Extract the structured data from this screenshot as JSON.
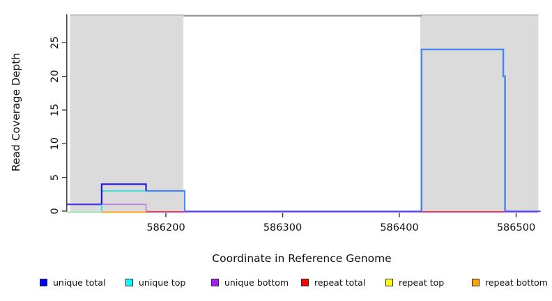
{
  "figure": {
    "background": "#FFFFFF",
    "plot_bg": "#FFFFFF",
    "axis_color": "#3C3C3C",
    "text_color": "#111111"
  },
  "chart_data": {
    "type": "line",
    "subtype": "step-coverage-plot",
    "title": "",
    "xlabel": "Coordinate in Reference Genome",
    "ylabel": "Read Coverage Depth",
    "x_range": [
      586115,
      586521
    ],
    "y_range": [
      0,
      29.5
    ],
    "x_ticks": [
      586200,
      586300,
      586400,
      586500
    ],
    "y_ticks": [
      0,
      5,
      10,
      15,
      20,
      25
    ],
    "grid": false,
    "legend_position": "bottom",
    "shaded_regions": [
      {
        "name": "shaded-region-left",
        "start": 586118,
        "end": 586215,
        "fill": "#DBDBDB",
        "border_top": "#ACACAC"
      },
      {
        "name": "shaded-region-right",
        "start": 586418,
        "end": 586519,
        "fill": "#DBDBDB",
        "border_top": "#ACACAC"
      }
    ],
    "marker_line": {
      "name": "repeat-region-marker",
      "start": 586215,
      "end": 586419,
      "depth": 29,
      "color": "#8C8C8C",
      "width": 2.2
    },
    "series": [
      {
        "name": "unique total",
        "color": "#0000FF",
        "steps": [
          [
            586115,
            586145,
            1
          ],
          [
            586145,
            586182,
            4
          ],
          [
            586182,
            586216,
            3
          ],
          [
            586216,
            586419,
            0
          ],
          [
            586419,
            586489,
            24
          ],
          [
            586489,
            586490,
            20
          ],
          [
            586490,
            586521,
            0
          ]
        ]
      },
      {
        "name": "unique top",
        "color": "#00FFFF",
        "steps": [
          [
            586115,
            586145,
            0
          ],
          [
            586145,
            586216,
            3
          ],
          [
            586216,
            586419,
            0
          ],
          [
            586419,
            586489,
            24
          ],
          [
            586489,
            586490,
            20
          ],
          [
            586490,
            586521,
            0
          ]
        ]
      },
      {
        "name": "unique bottom",
        "color": "#A020F0",
        "steps": [
          [
            586115,
            586182,
            1
          ],
          [
            586182,
            586521,
            0
          ]
        ]
      },
      {
        "name": "repeat total",
        "color": "#FF0000",
        "steps": [
          [
            586115,
            586521,
            0
          ]
        ]
      },
      {
        "name": "repeat top",
        "color": "#FFFF00",
        "steps": [
          [
            586115,
            586521,
            0
          ]
        ]
      },
      {
        "name": "repeat bottom",
        "color": "#FFA500",
        "steps": [
          [
            586115,
            586521,
            0
          ]
        ]
      }
    ],
    "visible_segments": [
      {
        "name": "zero-line-underlay-plum",
        "color": "#C9A4E8",
        "width": 1.5,
        "dy": 2,
        "pts": [
          [
            586182,
            0
          ],
          [
            586519,
            0
          ]
        ]
      },
      {
        "name": "zero-line-green-blend",
        "color": "#8FE3A6",
        "width": 1.8,
        "dy": 1.5,
        "pts": [
          [
            586115,
            0
          ],
          [
            586145,
            0
          ]
        ]
      },
      {
        "name": "zero-line-repeat-bottom",
        "color": "#FFA314",
        "width": 2.0,
        "dy": 1.5,
        "pts": [
          [
            586145,
            0
          ],
          [
            586183,
            0
          ]
        ]
      },
      {
        "name": "zero-line-repeat-total-a",
        "color": "#E63E54",
        "width": 1.7,
        "dy": 0.7,
        "pts": [
          [
            586183,
            0
          ],
          [
            586216,
            0
          ]
        ]
      },
      {
        "name": "zero-line-repeat-total-b",
        "color": "#E63E54",
        "width": 1.7,
        "dy": 0.7,
        "pts": [
          [
            586419,
            0
          ],
          [
            586490,
            0
          ]
        ]
      },
      {
        "name": "zero-line-unique-mid",
        "color": "#4B48F0",
        "width": 1.8,
        "dy": 0.3,
        "pts": [
          [
            586216,
            0
          ],
          [
            586419,
            0
          ]
        ]
      },
      {
        "name": "zero-line-unique-right",
        "color": "#4B48F0",
        "width": 1.8,
        "dy": 0.3,
        "pts": [
          [
            586490,
            0
          ],
          [
            586521,
            0
          ]
        ]
      },
      {
        "name": "unique-bottom-step",
        "color": "#BF7EE8",
        "width": 1.7,
        "dy": 0,
        "pts": [
          [
            586145,
            1
          ],
          [
            586183,
            1
          ],
          [
            586183,
            0
          ]
        ]
      },
      {
        "name": "blend-total-bottom-depth1",
        "color": "#4232EC",
        "width": 2.2,
        "dy": 0,
        "pts": [
          [
            586115,
            1
          ],
          [
            586145,
            1
          ]
        ]
      },
      {
        "name": "unique-top-step",
        "color": "#21E2EB",
        "width": 1.8,
        "dy": 0,
        "pts": [
          [
            586145,
            0
          ],
          [
            586145,
            3
          ],
          [
            586183,
            3
          ]
        ]
      },
      {
        "name": "unique-total-step",
        "color": "#2213F1",
        "width": 2.2,
        "dy": 0,
        "pts": [
          [
            586145,
            1
          ],
          [
            586145,
            4
          ],
          [
            586183,
            4
          ],
          [
            586183,
            3
          ]
        ]
      },
      {
        "name": "blend-total-top-depth3",
        "color": "#4486F6",
        "width": 2.2,
        "dy": 0,
        "pts": [
          [
            586183,
            3
          ],
          [
            586216,
            3
          ],
          [
            586216,
            0
          ]
        ]
      },
      {
        "name": "coverage-block-right",
        "color": "#4486F6",
        "width": 2.4,
        "dy": 0,
        "pts": [
          [
            586419,
            0
          ],
          [
            586419,
            24
          ],
          [
            586489,
            24
          ],
          [
            586489,
            20
          ],
          [
            586490.5,
            20
          ],
          [
            586490.5,
            0
          ]
        ]
      }
    ],
    "legend": {
      "items": [
        {
          "label": "unique total",
          "color": "#0000FF"
        },
        {
          "label": "unique top",
          "color": "#00FFFF"
        },
        {
          "label": "unique bottom",
          "color": "#A020F0"
        },
        {
          "label": "repeat total",
          "color": "#FF0000"
        },
        {
          "label": "repeat top",
          "color": "#FFFF00"
        },
        {
          "label": "repeat bottom",
          "color": "#FFA500"
        }
      ]
    }
  }
}
